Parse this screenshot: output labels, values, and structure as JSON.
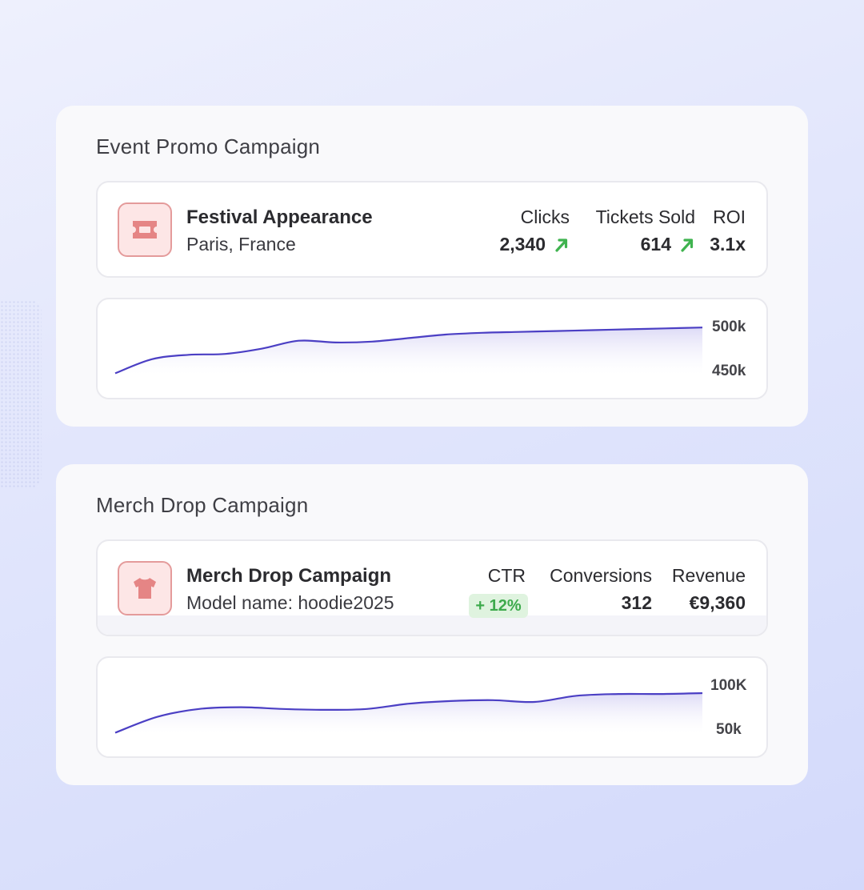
{
  "campaigns": [
    {
      "panel_title": "Event Promo Campaign",
      "icon": "ticket-icon",
      "name": "Festival Appearance",
      "subtitle": "Paris, France",
      "metrics": [
        {
          "label": "Clicks",
          "value": "2,340",
          "trend": "up"
        },
        {
          "label": "Tickets Sold",
          "value": "614",
          "trend": "up"
        },
        {
          "label": "ROI",
          "value": "3.1x"
        }
      ],
      "chart_data": {
        "type": "area",
        "color": "#4b3fc4",
        "y_ticks": [
          "500k",
          "450k"
        ],
        "ylim": [
          450000,
          500000
        ],
        "values": [
          446000,
          462000,
          467000,
          468000,
          474000,
          483000,
          481000,
          482000,
          486000,
          490000,
          492000,
          493000,
          494000,
          495000,
          496000,
          497000,
          498000
        ]
      }
    },
    {
      "panel_title": "Merch Drop Campaign",
      "icon": "tshirt-icon",
      "name": "Merch Drop Campaign",
      "subtitle": "Model name: hoodie2025",
      "metrics": [
        {
          "label": "CTR",
          "value": "+ 12%",
          "style": "badge"
        },
        {
          "label": "Conversions",
          "value": "312"
        },
        {
          "label": "Revenue",
          "value": "€9,360"
        }
      ],
      "chart_data": {
        "type": "area",
        "color": "#4b3fc4",
        "y_ticks": [
          "100K",
          "50k"
        ],
        "ylim": [
          50000,
          100000
        ],
        "values": [
          45000,
          63000,
          72000,
          74000,
          72000,
          71000,
          72000,
          78000,
          81000,
          82000,
          80000,
          87000,
          89000,
          89000,
          90000
        ]
      }
    }
  ]
}
